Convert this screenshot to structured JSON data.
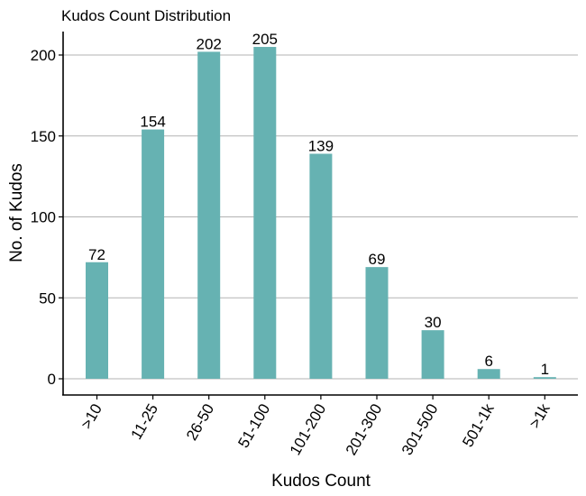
{
  "chart_data": {
    "type": "bar",
    "title": "Kudos Count Distribution",
    "xlabel": "Kudos Count",
    "ylabel": "No. of Kudos",
    "categories": [
      ">10",
      "11-25",
      "26-50",
      "51-100",
      "101-200",
      "201-300",
      "301-500",
      "501-1k",
      ">1k"
    ],
    "values": [
      72,
      154,
      202,
      205,
      139,
      69,
      30,
      6,
      1
    ],
    "ylim": [
      0,
      215
    ],
    "yticks": [
      0,
      50,
      100,
      150,
      200
    ],
    "grid": "horizontal",
    "legend": "none",
    "bar_color": "#66b2b2"
  }
}
